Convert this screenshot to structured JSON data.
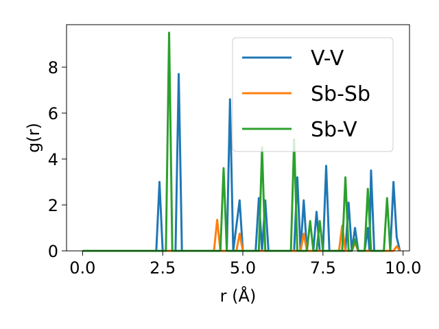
{
  "chart_data": {
    "type": "line",
    "xlabel": "r (Å)",
    "ylabel": "g(r)",
    "xlim": [
      -0.5,
      10.2
    ],
    "ylim": [
      0,
      9.85
    ],
    "xticks": [
      "0.0",
      "2.5",
      "5.0",
      "7.5",
      "10.0"
    ],
    "yticks": [
      "0",
      "2",
      "4",
      "6",
      "8"
    ],
    "grid": false,
    "legend": "top-right",
    "series": [
      {
        "name": "V-V",
        "color": "#1f77b4",
        "points": [
          [
            0,
            0
          ],
          [
            2.3,
            0
          ],
          [
            2.4,
            3.0
          ],
          [
            2.5,
            0
          ],
          [
            2.9,
            0
          ],
          [
            3.0,
            7.7
          ],
          [
            3.1,
            0
          ],
          [
            4.5,
            0
          ],
          [
            4.6,
            6.6
          ],
          [
            4.7,
            0
          ],
          [
            4.9,
            2.2
          ],
          [
            5.0,
            0
          ],
          [
            5.4,
            0
          ],
          [
            5.5,
            2.3
          ],
          [
            5.6,
            0
          ],
          [
            5.7,
            2.2
          ],
          [
            5.8,
            0
          ],
          [
            6.6,
            0
          ],
          [
            6.7,
            3.2
          ],
          [
            6.8,
            0
          ],
          [
            6.9,
            2.2
          ],
          [
            7.0,
            0
          ],
          [
            7.2,
            0
          ],
          [
            7.3,
            1.7
          ],
          [
            7.4,
            0
          ],
          [
            7.5,
            0
          ],
          [
            7.6,
            3.7
          ],
          [
            7.7,
            0
          ],
          [
            8.2,
            0
          ],
          [
            8.3,
            2.1
          ],
          [
            8.4,
            0
          ],
          [
            8.5,
            1.0
          ],
          [
            8.6,
            0
          ],
          [
            8.8,
            0
          ],
          [
            8.9,
            1.0
          ],
          [
            8.95,
            0
          ],
          [
            9.0,
            3.5
          ],
          [
            9.1,
            0
          ],
          [
            9.6,
            0
          ],
          [
            9.7,
            3.0
          ],
          [
            9.8,
            0.6
          ],
          [
            9.9,
            0
          ]
        ]
      },
      {
        "name": "Sb-Sb",
        "color": "#ff7f0e",
        "points": [
          [
            0,
            0
          ],
          [
            4.1,
            0
          ],
          [
            4.2,
            1.35
          ],
          [
            4.3,
            0
          ],
          [
            4.8,
            0
          ],
          [
            4.9,
            0.75
          ],
          [
            5.0,
            0
          ],
          [
            6.8,
            0
          ],
          [
            6.9,
            0.75
          ],
          [
            7.0,
            0
          ],
          [
            8.0,
            0
          ],
          [
            8.1,
            1.1
          ],
          [
            8.2,
            0
          ],
          [
            8.4,
            0
          ],
          [
            8.5,
            0.35
          ],
          [
            8.6,
            0
          ],
          [
            9.7,
            0
          ],
          [
            9.8,
            0.2
          ],
          [
            9.9,
            0
          ]
        ]
      },
      {
        "name": "Sb-V",
        "color": "#2ca02c",
        "points": [
          [
            0,
            0
          ],
          [
            2.6,
            0
          ],
          [
            2.7,
            9.5
          ],
          [
            2.8,
            0
          ],
          [
            4.3,
            0
          ],
          [
            4.4,
            3.6
          ],
          [
            4.5,
            0
          ],
          [
            5.5,
            0
          ],
          [
            5.6,
            4.5
          ],
          [
            5.7,
            0
          ],
          [
            6.5,
            0
          ],
          [
            6.6,
            4.85
          ],
          [
            6.7,
            0
          ],
          [
            7.0,
            0
          ],
          [
            7.1,
            1.3
          ],
          [
            7.2,
            0
          ],
          [
            7.3,
            0
          ],
          [
            7.4,
            1.3
          ],
          [
            7.5,
            0
          ],
          [
            8.1,
            0
          ],
          [
            8.2,
            3.2
          ],
          [
            8.3,
            0
          ],
          [
            8.4,
            0
          ],
          [
            8.5,
            0.5
          ],
          [
            8.6,
            0
          ],
          [
            8.8,
            0
          ],
          [
            8.9,
            2.7
          ],
          [
            9.0,
            0
          ],
          [
            9.4,
            0
          ],
          [
            9.5,
            2.3
          ],
          [
            9.6,
            0
          ]
        ]
      }
    ]
  }
}
